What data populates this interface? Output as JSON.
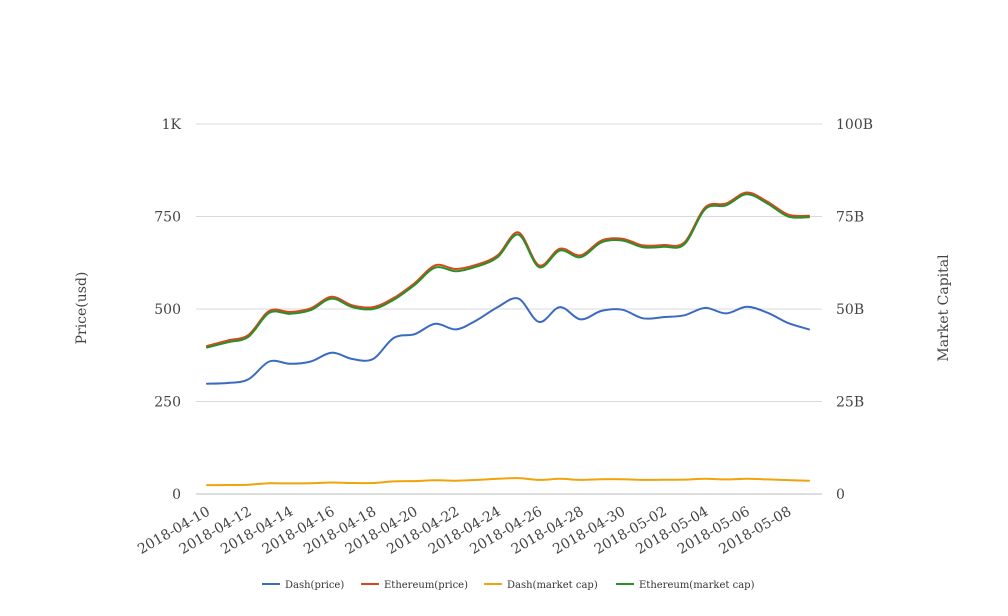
{
  "chart_data": {
    "type": "line",
    "title": "",
    "xlabel": "",
    "ylabel": "Price(usd)",
    "ylabel_right": "Market Capital",
    "ylim": [
      0,
      1000
    ],
    "ylim_right": [
      0,
      100000000000
    ],
    "yticks": [
      "0",
      "250",
      "500",
      "750",
      "1K"
    ],
    "yticks_right": [
      "0",
      "25B",
      "50B",
      "75B",
      "100B"
    ],
    "grid": true,
    "legend_position": "bottom",
    "x_tick_labels": [
      "2018-04-10",
      "2018-04-12",
      "2018-04-14",
      "2018-04-16",
      "2018-04-18",
      "2018-04-20",
      "2018-04-22",
      "2018-04-24",
      "2018-04-26",
      "2018-04-28",
      "2018-04-30",
      "2018-05-02",
      "2018-05-04",
      "2018-05-06",
      "2018-05-08"
    ],
    "x": [
      "2018-04-10",
      "2018-04-11",
      "2018-04-12",
      "2018-04-13",
      "2018-04-14",
      "2018-04-15",
      "2018-04-16",
      "2018-04-17",
      "2018-04-18",
      "2018-04-19",
      "2018-04-20",
      "2018-04-21",
      "2018-04-22",
      "2018-04-23",
      "2018-04-24",
      "2018-04-25",
      "2018-04-26",
      "2018-04-27",
      "2018-04-28",
      "2018-04-29",
      "2018-04-30",
      "2018-05-01",
      "2018-05-02",
      "2018-05-03",
      "2018-05-04",
      "2018-05-05",
      "2018-05-06",
      "2018-05-07",
      "2018-05-08",
      "2018-05-09"
    ],
    "series": [
      {
        "name": "Dash(price)",
        "axis": "left",
        "color": "#3a6bbf",
        "values": [
          298,
          300,
          310,
          358,
          352,
          358,
          382,
          365,
          365,
          422,
          432,
          460,
          445,
          470,
          505,
          528,
          465,
          505,
          472,
          495,
          498,
          475,
          478,
          483,
          503,
          488,
          506,
          490,
          462,
          445
        ]
      },
      {
        "name": "Ethereum(price)",
        "axis": "left",
        "color": "#d4481e",
        "values": [
          400,
          415,
          430,
          495,
          492,
          502,
          533,
          510,
          505,
          530,
          570,
          618,
          608,
          620,
          645,
          707,
          618,
          663,
          645,
          685,
          690,
          672,
          673,
          680,
          775,
          785,
          815,
          790,
          755,
          752
        ]
      },
      {
        "name": "Dash(market cap)",
        "axis": "right",
        "color": "#f0a30a",
        "values": [
          2400000000,
          2430000000,
          2520000000,
          2900000000,
          2870000000,
          2920000000,
          3100000000,
          2960000000,
          2970000000,
          3400000000,
          3500000000,
          3700000000,
          3600000000,
          3800000000,
          4100000000,
          4300000000,
          3800000000,
          4100000000,
          3800000000,
          4000000000,
          4000000000,
          3800000000,
          3850000000,
          3900000000,
          4100000000,
          3950000000,
          4100000000,
          3950000000,
          3750000000,
          3600000000
        ]
      },
      {
        "name": "Ethereum(market cap)",
        "axis": "right",
        "color": "#2a8f2a",
        "values": [
          39600000000,
          41000000000,
          42500000000,
          49000000000,
          48700000000,
          49700000000,
          52800000000,
          50500000000,
          50000000000,
          52500000000,
          56500000000,
          61200000000,
          60200000000,
          61500000000,
          64000000000,
          70100000000,
          61300000000,
          65800000000,
          64000000000,
          68000000000,
          68500000000,
          66700000000,
          66800000000,
          67500000000,
          77000000000,
          78000000000,
          81000000000,
          78500000000,
          75000000000,
          74800000000
        ]
      }
    ]
  }
}
